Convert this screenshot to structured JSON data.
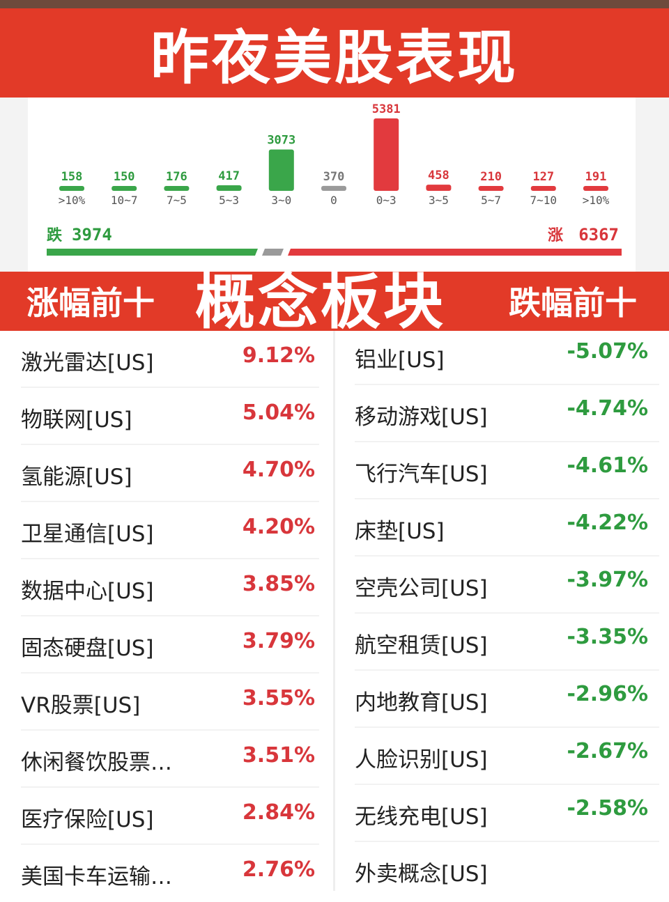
{
  "header": {
    "title": "昨夜美股表现"
  },
  "chart_data": {
    "type": "bar",
    "categories": [
      ">10%",
      "10~7",
      "7~5",
      "5~3",
      "3~0",
      "0",
      "0~3",
      "3~5",
      "5~7",
      "7~10",
      ">10%"
    ],
    "values": [
      158,
      150,
      176,
      417,
      3073,
      370,
      5381,
      458,
      210,
      127,
      191
    ],
    "bar_colors": [
      "#3aa64a",
      "#3aa64a",
      "#3aa64a",
      "#3aa64a",
      "#3aa64a",
      "#9a9a9a",
      "#e23a3e",
      "#e23a3e",
      "#e23a3e",
      "#e23a3e",
      "#e23a3e"
    ],
    "summary": {
      "down_label": "跌",
      "down_value": "3974",
      "up_label": "涨",
      "up_value": "6367"
    }
  },
  "sections": {
    "top_gainers_label": "涨幅前十",
    "center_label": "概念板块",
    "top_losers_label": "跌幅前十"
  },
  "gainers": [
    {
      "name": "激光雷达[US]",
      "pct": "9.12%"
    },
    {
      "name": "物联网[US]",
      "pct": "5.04%"
    },
    {
      "name": "氢能源[US]",
      "pct": "4.70%"
    },
    {
      "name": "卫星通信[US]",
      "pct": "4.20%"
    },
    {
      "name": "数据中心[US]",
      "pct": "3.85%"
    },
    {
      "name": "固态硬盘[US]",
      "pct": "3.79%"
    },
    {
      "name": "VR股票[US]",
      "pct": "3.55%"
    },
    {
      "name": "休闲餐饮股票…",
      "pct": "3.51%"
    },
    {
      "name": "医疗保险[US]",
      "pct": "2.84%"
    },
    {
      "name": "美国卡车运输…",
      "pct": "2.76%"
    }
  ],
  "losers": [
    {
      "name": "铝业[US]",
      "pct": "-5.07%"
    },
    {
      "name": "移动游戏[US]",
      "pct": "-4.74%"
    },
    {
      "name": "飞行汽车[US]",
      "pct": "-4.61%"
    },
    {
      "name": "床垫[US]",
      "pct": "-4.22%"
    },
    {
      "name": "空壳公司[US]",
      "pct": "-3.97%"
    },
    {
      "name": "航空租赁[US]",
      "pct": "-3.35%"
    },
    {
      "name": "内地教育[US]",
      "pct": "-2.96%"
    },
    {
      "name": "人脸识别[US]",
      "pct": "-2.67%"
    },
    {
      "name": "无线充电[US]",
      "pct": "-2.58%"
    },
    {
      "name": "外卖概念[US]",
      "pct": ""
    }
  ]
}
